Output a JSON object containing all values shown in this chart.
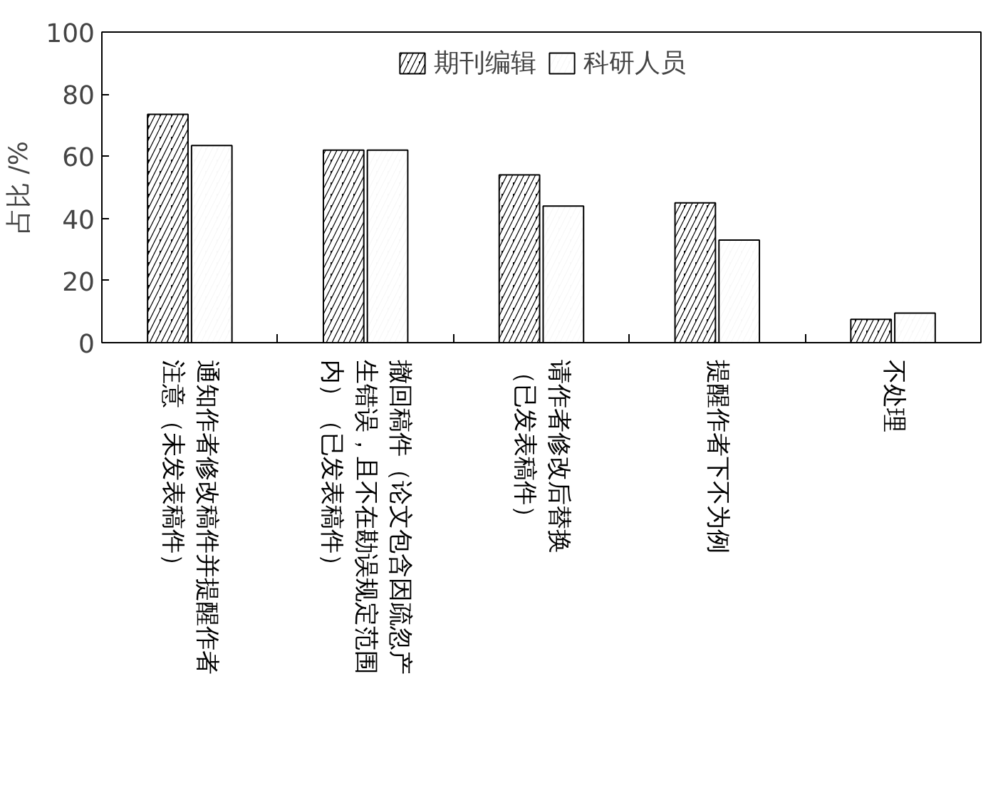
{
  "chart_data": {
    "type": "bar",
    "ylabel": "占比 /%",
    "categories": [
      "通知作者修改稿件并提醒作者注意（未发表稿件）",
      "撤回稿件（论文包含因疏忽产生错误，且不在勘误规定范围内）（已发表稿件）",
      "请作者修改后替换（已发表稿件）",
      "提醒作者下不为例",
      "不处理"
    ],
    "series": [
      {
        "name": "期刊编辑",
        "color": "#000000",
        "values": [
          73.5,
          62,
          54,
          45,
          7.5
        ]
      },
      {
        "name": "科研人员",
        "color": "#f7f7f7",
        "values": [
          63.5,
          62,
          44,
          33,
          9.5
        ]
      }
    ],
    "ylim": [
      0,
      100
    ],
    "yticks": [
      0,
      20,
      40,
      60,
      80,
      100
    ],
    "legend": "top"
  }
}
